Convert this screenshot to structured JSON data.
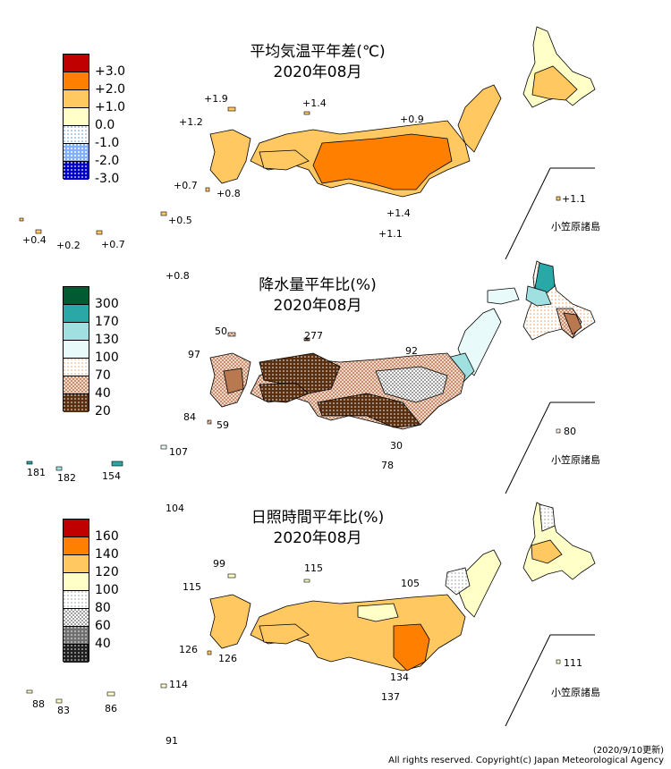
{
  "panels": [
    {
      "title": "平均気温平年差(℃)",
      "subtitle": "2020年08月",
      "legend": [
        {
          "label": "+3.0",
          "color": "#c00000",
          "pattern": "solid"
        },
        {
          "label": "+2.0",
          "color": "#ff8000",
          "pattern": "solid"
        },
        {
          "label": "+1.0",
          "color": "#ffc860",
          "pattern": "solid"
        },
        {
          "label": "0.0",
          "color": "#ffffc8",
          "pattern": "solid"
        },
        {
          "label": "-1.0",
          "color": "#ffffff",
          "pattern": "dots-blue-light"
        },
        {
          "label": "-2.0",
          "color": "#ffffff",
          "pattern": "dots-blue-mid"
        },
        {
          "label": "-3.0",
          "color": "#0000c8",
          "pattern": "dots-blue-dark"
        }
      ],
      "values": [
        "+1.9",
        "+1.4",
        "+1.2",
        "+0.9",
        "+0.7",
        "+0.8",
        "+1.4",
        "+1.1",
        "+1.1",
        "+0.5",
        "+0.4",
        "+0.2",
        "+0.7",
        "+0.8"
      ],
      "ogasawara_label": "小笠原諸島"
    },
    {
      "title": "降水量平年比(%)",
      "subtitle": "2020年08月",
      "legend": [
        {
          "label": "300",
          "color": "#005a32",
          "pattern": "solid"
        },
        {
          "label": "170",
          "color": "#2aa8a8",
          "pattern": "solid"
        },
        {
          "label": "130",
          "color": "#a0e0e0",
          "pattern": "solid"
        },
        {
          "label": "100",
          "color": "#e8fafa",
          "pattern": "solid"
        },
        {
          "label": "70",
          "color": "#fff",
          "pattern": "dots-orange"
        },
        {
          "label": "40",
          "color": "#e8c8b8",
          "pattern": "hatch-brown"
        },
        {
          "label": "20",
          "color": "#5a3010",
          "pattern": "dots-dark"
        }
      ],
      "values": [
        "50",
        "277",
        "97",
        "92",
        "84",
        "59",
        "30",
        "78",
        "80",
        "181",
        "182",
        "154",
        "107",
        "104"
      ],
      "ogasawara_label": "小笠原諸島"
    },
    {
      "title": "日照時間平年比(%)",
      "subtitle": "2020年08月",
      "legend": [
        {
          "label": "160",
          "color": "#c00000",
          "pattern": "solid"
        },
        {
          "label": "140",
          "color": "#ff8000",
          "pattern": "solid"
        },
        {
          "label": "120",
          "color": "#ffc860",
          "pattern": "solid"
        },
        {
          "label": "100",
          "color": "#ffffc8",
          "pattern": "solid"
        },
        {
          "label": "80",
          "color": "#fff",
          "pattern": "dots-grey-light"
        },
        {
          "label": "60",
          "color": "#c8c8c8",
          "pattern": "check-grey"
        },
        {
          "label": "40",
          "color": "#808080",
          "pattern": "dots-grey-dark"
        },
        {
          "label": "",
          "color": "#202020",
          "pattern": "dots-black"
        }
      ],
      "values": [
        "99",
        "115",
        "115",
        "105",
        "126",
        "126",
        "134",
        "137",
        "111",
        "88",
        "83",
        "86",
        "114",
        "91"
      ],
      "ogasawara_label": "小笠原諸島"
    }
  ],
  "footer": {
    "date": "(2020/9/10更新)",
    "copyright": "All rights reserved. Copyright(c) Japan Meteorological Agency"
  }
}
